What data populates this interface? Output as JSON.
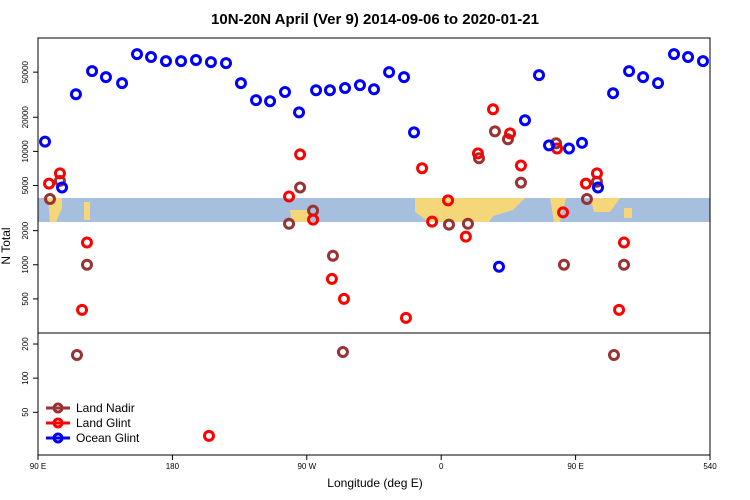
{
  "chart_data": {
    "type": "scatter",
    "title": "10N-20N April (Ver 9)   2014-09-06 to 2020-01-21",
    "x_label": "Longitude (deg E)",
    "y_label": "N Total",
    "log_y": true,
    "legend": "bottom-left",
    "xlim": [
      90,
      540
    ],
    "xticks": [
      {
        "value": 90,
        "label": "90 E"
      },
      180,
      {
        "value": 270,
        "label": "90 W"
      },
      {
        "value": 360,
        "label": "0"
      },
      {
        "value": 450,
        "label": "90 E"
      },
      540
    ],
    "ylim": [
      21,
      100000
    ],
    "yticks": [
      50000,
      20000,
      10000,
      5000,
      2000,
      1000,
      500,
      200,
      100,
      50
    ],
    "series": [
      {
        "name": "Land Nadir",
        "color": "#993333",
        "x": [
          98.0,
          104.7,
          122.8,
          116.1,
          258.1,
          265.5,
          274.2,
          287.5,
          294.2,
          365.2,
          377.9,
          385.3,
          396.0,
          404.7,
          413.4,
          436.9,
          442.2,
          457.6,
          464.3,
          475.7,
          482.4
        ],
        "values": [
          3800,
          5500,
          1000,
          160,
          2300,
          4800,
          3000,
          1200,
          170,
          2260,
          2300,
          8700,
          15000,
          12800,
          5300,
          11800,
          1000,
          3800,
          5400,
          160,
          1000
        ]
      },
      {
        "name": "Land Glint",
        "color": "#ff0000",
        "x": [
          97.4,
          104.7,
          122.8,
          119.5,
          258.1,
          265.5,
          274.2,
          286.8,
          294.9,
          204.5,
          336.4,
          347.2,
          353.9,
          364.6,
          376.5,
          384.6,
          394.7,
          406.1,
          413.4,
          437.6,
          441.6,
          456.9,
          464.3,
          482.4,
          479.1
        ],
        "values": [
          5200,
          6400,
          1570,
          400,
          4000,
          9400,
          2500,
          750,
          500,
          31,
          340,
          7100,
          2400,
          3700,
          1770,
          9600,
          23500,
          14400,
          7500,
          10600,
          2900,
          5200,
          6400,
          1570,
          400
        ]
      },
      {
        "name": "Ocean Glint",
        "color": "#0000ff",
        "x": [
          94.7,
          106.1,
          115.4,
          126.2,
          135.5,
          146.3,
          156.3,
          165.7,
          175.7,
          185.8,
          195.8,
          205.8,
          215.9,
          225.9,
          236.0,
          245.4,
          255.4,
          264.8,
          276.2,
          285.5,
          295.6,
          305.6,
          315.0,
          325.1,
          335.1,
          341.8,
          398.7,
          416.1,
          425.5,
          432.2,
          445.6,
          454.3,
          465.0,
          475.1,
          485.8,
          495.2,
          505.2,
          515.9,
          525.3,
          535.3
        ],
        "values": [
          12200,
          4800,
          31900,
          51000,
          45200,
          40000,
          72000,
          68000,
          62500,
          62500,
          64000,
          61300,
          60100,
          40000,
          28300,
          27700,
          33400,
          22100,
          34600,
          34600,
          36200,
          38400,
          35300,
          50000,
          45200,
          14700,
          960,
          18800,
          47000,
          11300,
          10600,
          11900,
          4800,
          32600,
          51000,
          45200,
          40000,
          72000,
          68000,
          62500
        ]
      }
    ]
  }
}
